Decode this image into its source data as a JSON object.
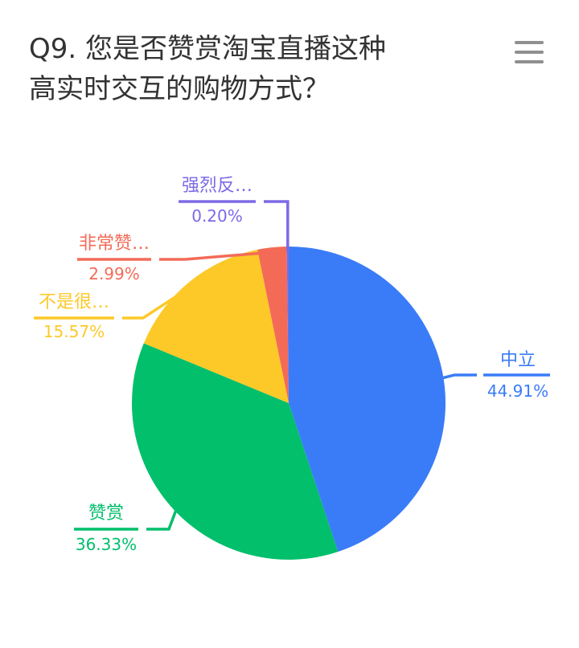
{
  "header": {
    "title_lines": [
      "Q9. 您是否赞赏淘宝直播这种",
      "高实时交互的购物方式？"
    ]
  },
  "menu": {
    "icon": "hamburger-menu-icon",
    "color": "#8f8f8f"
  },
  "chart_data": {
    "type": "pie",
    "title": "Q9. 您是否赞赏淘宝直播这种高实时交互的购物方式？",
    "start_angle_deg": 0,
    "direction": "clockwise",
    "slices": [
      {
        "label": "中立",
        "display_label": "中立",
        "value": 44.91,
        "display_value": "44.91%",
        "color": "#3a7cf7"
      },
      {
        "label": "赞赏",
        "display_label": "赞赏",
        "value": 36.33,
        "display_value": "36.33%",
        "color": "#02bf6b"
      },
      {
        "label": "不是很赞赏",
        "display_label": "不是很…",
        "value": 15.57,
        "display_value": "15.57%",
        "color": "#fdc928"
      },
      {
        "label": "非常赞赏",
        "display_label": "非常赞…",
        "value": 2.99,
        "display_value": "2.99%",
        "color": "#f36b57"
      },
      {
        "label": "强烈反对",
        "display_label": "强烈反…",
        "value": 0.2,
        "display_value": "0.20%",
        "color": "#7c6ae6"
      }
    ]
  }
}
